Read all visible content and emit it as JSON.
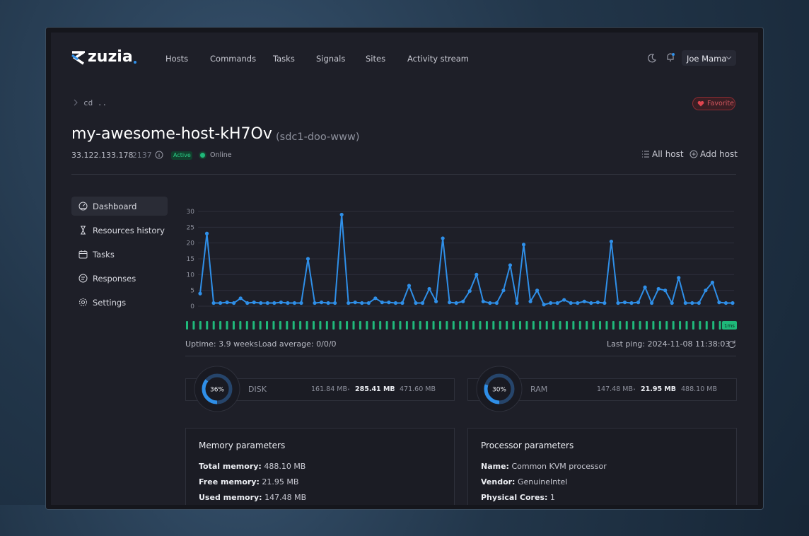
{
  "nav": {
    "logo": "zuzia",
    "items": [
      "Hosts",
      "Commands",
      "Tasks",
      "Signals",
      "Sites",
      "Activity stream"
    ],
    "user": "Joe Mama"
  },
  "breadcrumb": "cd ..",
  "favorite": "Favorite",
  "host": {
    "name": "my-awesome-host-kH7Ov",
    "alias": "(sdc1-doo-www)",
    "ip": "33.122.133.178",
    "port": ":2137",
    "badge": "Active",
    "status": "Online"
  },
  "actions": [
    "All host",
    "Add host"
  ],
  "sidebar": [
    "Dashboard",
    "Resources history",
    "Tasks",
    "Responses",
    "Settings"
  ],
  "chart_data": {
    "type": "line",
    "color": "#2f8fe8",
    "ylim": [
      0,
      30
    ],
    "yticks": [
      0,
      5,
      10,
      15,
      20,
      25,
      30
    ],
    "grid": true,
    "values": [
      4,
      23,
      1,
      1,
      1.2,
      1,
      2.5,
      1,
      1.2,
      1,
      1,
      1,
      1.2,
      1,
      1,
      1,
      15,
      1,
      1.2,
      1,
      1,
      29,
      1,
      1.2,
      1,
      1,
      2.5,
      1.2,
      1.2,
      1,
      1,
      6.5,
      1,
      1,
      5.5,
      1.5,
      21.5,
      1.2,
      1,
      1.5,
      4.8,
      10,
      1.5,
      1,
      1,
      5,
      13,
      1,
      19.5,
      1.5,
      5,
      0.5,
      1,
      1,
      2,
      1,
      1,
      1.5,
      1,
      1.2,
      1,
      20.5,
      1,
      1.2,
      1,
      1.2,
      6,
      1,
      5.5,
      5,
      1,
      9,
      1,
      1,
      1,
      5,
      7.5,
      1.2,
      1,
      1
    ]
  },
  "ping_badge": "1ms",
  "stats": {
    "uptime": "Uptime: 3.9 weeks",
    "load": "Load average: 0/0/0",
    "last_ping": "Last ping: 2024-11-08 11:38:03"
  },
  "usage": [
    {
      "name": "DISK",
      "percent": 36,
      "percent_label": "36%",
      "values": [
        "161.84 MB",
        "285.41 MB",
        "471.60 MB"
      ]
    },
    {
      "name": "RAM",
      "percent": 30,
      "percent_label": "30%",
      "values": [
        "147.48 MB",
        "21.95 MB",
        "488.10 MB"
      ]
    }
  ],
  "panels": [
    {
      "title": "Memory parameters",
      "rows": [
        [
          "Total memory:",
          "488.10 MB"
        ],
        [
          "Free memory:",
          "21.95 MB"
        ],
        [
          "Used memory:",
          "147.48 MB"
        ]
      ]
    },
    {
      "title": "Processor parameters",
      "rows": [
        [
          "Name:",
          "Common KVM processor"
        ],
        [
          "Vendor:",
          "GenuineIntel"
        ],
        [
          "Physical Cores:",
          "1"
        ]
      ]
    }
  ]
}
